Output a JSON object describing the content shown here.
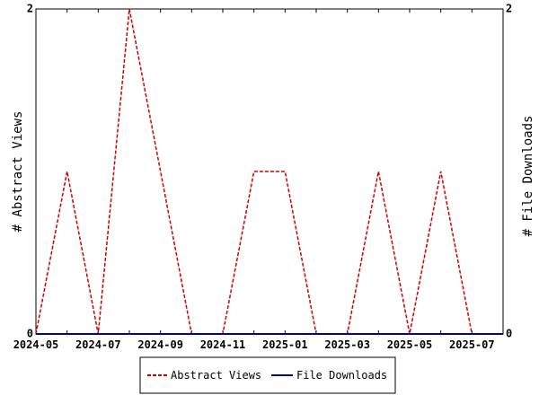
{
  "chart_data": {
    "type": "line",
    "x": [
      "2024-05",
      "2024-06",
      "2024-07",
      "2024-08",
      "2024-09",
      "2024-10",
      "2024-11",
      "2024-12",
      "2025-01",
      "2025-02",
      "2025-03",
      "2025-04",
      "2025-05",
      "2025-06",
      "2025-07",
      "2025-08"
    ],
    "x_tick_labels": [
      "2024-05",
      "2024-07",
      "2024-09",
      "2024-11",
      "2025-01",
      "2025-03",
      "2025-05",
      "2025-07"
    ],
    "series": [
      {
        "name": "Abstract Views",
        "axis": "left",
        "color": "#cc0000",
        "dash": "dashed",
        "values": [
          0,
          1,
          0,
          2,
          1,
          0,
          0,
          1,
          1,
          0,
          0,
          1,
          0,
          1,
          0,
          0
        ]
      },
      {
        "name": "File Downloads",
        "axis": "right",
        "color": "#0000aa",
        "dash": "solid",
        "values": [
          0,
          0,
          0,
          0,
          0,
          0,
          0,
          0,
          0,
          0,
          0,
          0,
          0,
          0,
          0,
          0
        ]
      }
    ],
    "ylabel_left": "# Abstract Views",
    "ylabel_right": "# File Downloads",
    "ylim_left": [
      0,
      2
    ],
    "ylim_right": [
      0,
      2
    ],
    "y_ticks_left": [
      "0",
      "2"
    ],
    "y_ticks_right": [
      "0",
      "2"
    ],
    "grid": false,
    "legend_position": "bottom"
  }
}
